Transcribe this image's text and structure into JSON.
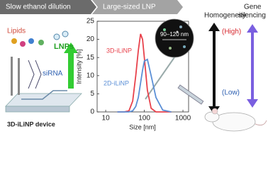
{
  "banner": {
    "step1": "Slow ethanol dilution",
    "step2": "Large-sized LNP"
  },
  "device": {
    "lipids": "Lipids",
    "sirna": "siRNA",
    "lnps": "LNPs",
    "label": "3D-iLiNP device"
  },
  "chart_data": {
    "type": "line",
    "x_label": "Size [nm]",
    "y_label": "Intensity [%]",
    "x": [
      20,
      30,
      40,
      50,
      60,
      70,
      80,
      90,
      100,
      120,
      150,
      200,
      300,
      500
    ],
    "series": [
      {
        "name": "3D-iLiNP",
        "color": "#e8414b",
        "values": [
          0,
          0,
          0.3,
          3,
          10,
          17,
          21.5,
          20,
          15,
          6,
          1,
          0,
          0,
          0
        ]
      },
      {
        "name": "2D-iLiNP",
        "color": "#5b8fd6",
        "values": [
          0,
          0,
          0,
          0.3,
          1.5,
          4,
          8,
          11.5,
          14,
          14.5,
          10,
          4,
          0.5,
          0
        ]
      }
    ],
    "xlim": [
      6,
      1400
    ],
    "ylim": [
      0,
      25
    ],
    "xticks": [
      10,
      100,
      1000
    ],
    "yticks": [
      0,
      5,
      10,
      15,
      20,
      25
    ],
    "log_x": true,
    "annotation": "90–120 nm"
  },
  "right": {
    "homogeneity": "Homogeneity",
    "high": "(High)",
    "low": "(Low)",
    "gene_silencing": [
      "Gene",
      "silencing"
    ]
  }
}
